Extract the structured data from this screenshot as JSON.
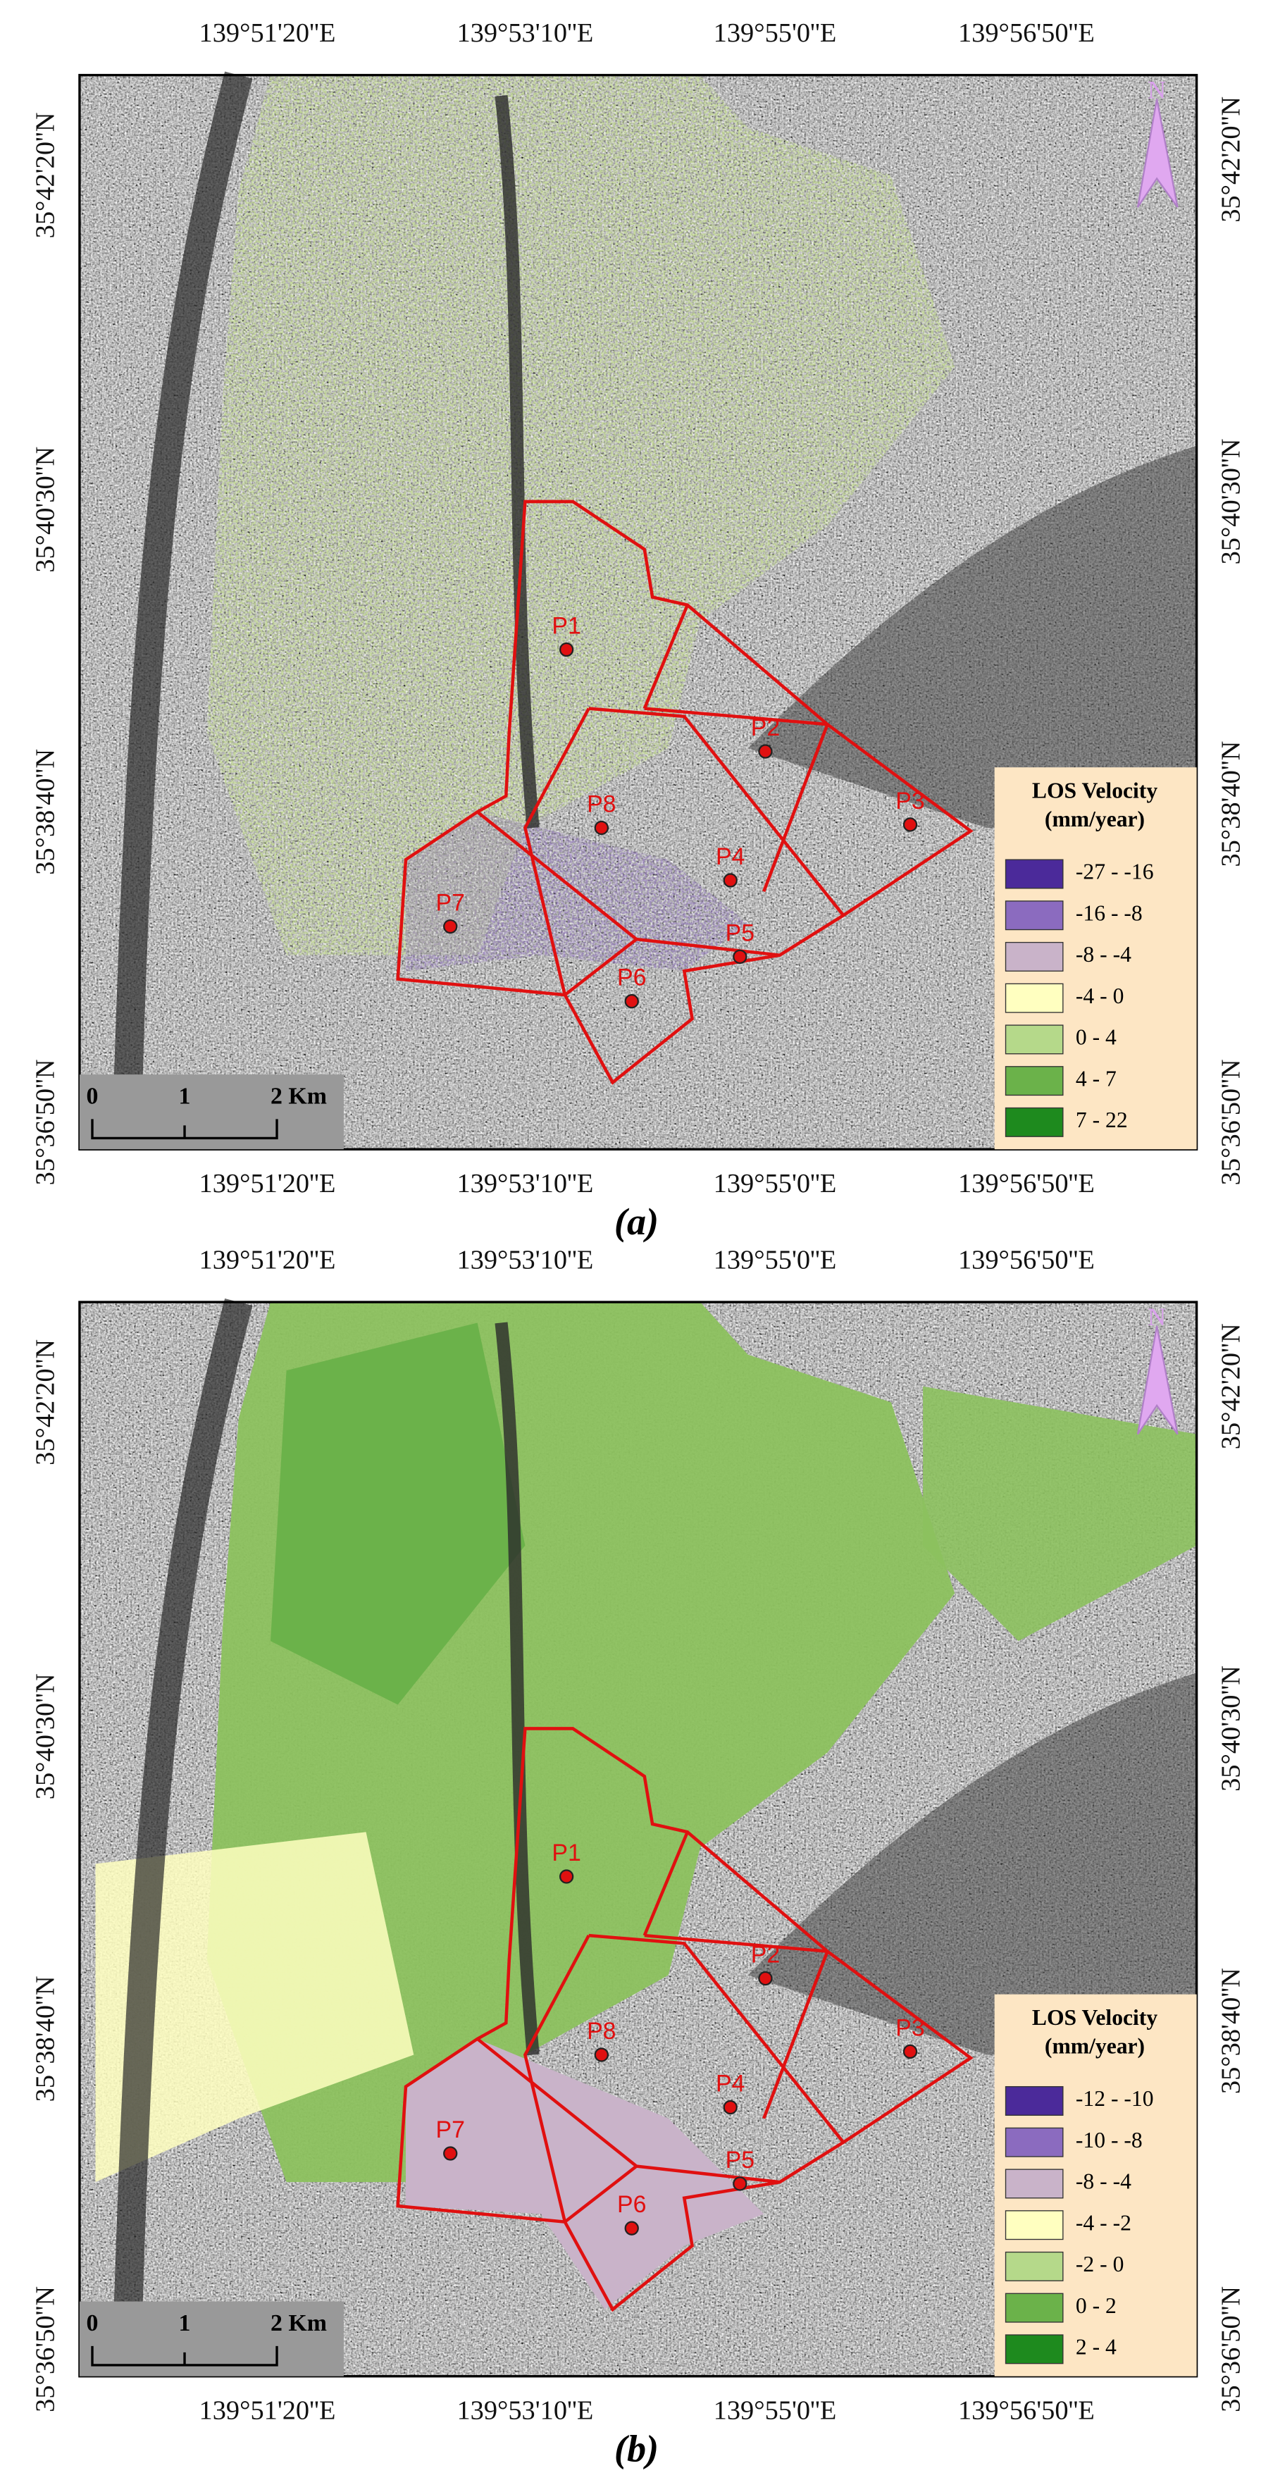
{
  "panels": [
    {
      "caption": "(a)",
      "lon_labels_top": [
        "139°51'20''E",
        "139°53'10''E",
        "139°55'0''E",
        "139°56'50''E"
      ],
      "lon_labels_bottom": [
        "139°51'20''E",
        "139°53'10''E",
        "139°55'0''E",
        "139°56'50''E"
      ],
      "lat_labels_left": [
        "35°42'20''N",
        "35°40'30''N",
        "35°38'40''N",
        "35°36'50''N"
      ],
      "lat_labels_right": [
        "35°42'20''N",
        "35°40'30''N",
        "35°38'40''N",
        "35°36'50''N"
      ],
      "north": "N",
      "scale_bar": [
        "0",
        "1",
        "2 Km"
      ],
      "legend": {
        "title": "LOS Velocity",
        "unit": "(mm/year)",
        "classes": [
          {
            "label": "-27 - -16",
            "color": "#4b2a9a"
          },
          {
            "label": "-16 - -8",
            "color": "#8b6bbf"
          },
          {
            "label": "-8 - -4",
            "color": "#c9b3c9"
          },
          {
            "label": "-4 - 0",
            "color": "#ffffc0"
          },
          {
            "label": "0 - 4",
            "color": "#b5d98a"
          },
          {
            "label": "4 - 7",
            "color": "#6bb24a"
          },
          {
            "label": "7 - 22",
            "color": "#1e8a1e"
          }
        ]
      },
      "points": [
        "P1",
        "P2",
        "P3",
        "P4",
        "P5",
        "P6",
        "P7",
        "P8"
      ]
    },
    {
      "caption": "(b)",
      "lon_labels_top": [
        "139°51'20''E",
        "139°53'10''E",
        "139°55'0''E",
        "139°56'50''E"
      ],
      "lon_labels_bottom": [
        "139°51'20''E",
        "139°53'10''E",
        "139°55'0''E",
        "139°56'50''E"
      ],
      "lat_labels_left": [
        "35°42'20''N",
        "35°40'30''N",
        "35°38'40''N",
        "35°36'50''N"
      ],
      "lat_labels_right": [
        "35°42'20''N",
        "35°40'30''N",
        "35°38'40''N",
        "35°36'50''N"
      ],
      "north": "N",
      "scale_bar": [
        "0",
        "1",
        "2 Km"
      ],
      "legend": {
        "title": "LOS Velocity",
        "unit": "(mm/year)",
        "classes": [
          {
            "label": "-12 - -10",
            "color": "#4b2a9a"
          },
          {
            "label": "-10 - -8",
            "color": "#8b6bbf"
          },
          {
            "label": "-8 - -4",
            "color": "#c9b3c9"
          },
          {
            "label": "-4 - -2",
            "color": "#ffffc0"
          },
          {
            "label": "-2 - 0",
            "color": "#b5d98a"
          },
          {
            "label": "0 - 2",
            "color": "#6bb24a"
          },
          {
            "label": "2 - 4",
            "color": "#1e8a1e"
          }
        ]
      },
      "points": [
        "P1",
        "P2",
        "P3",
        "P4",
        "P5",
        "P6",
        "P7",
        "P8"
      ]
    }
  ]
}
